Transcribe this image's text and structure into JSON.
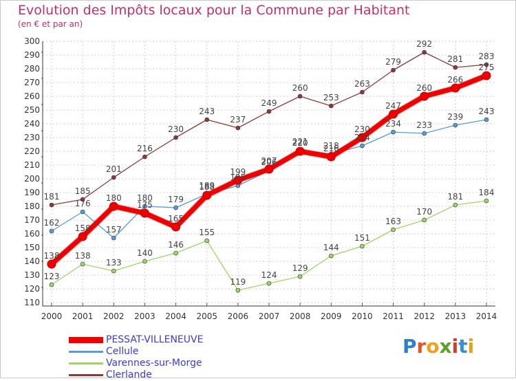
{
  "header": {
    "title": "Evolution des Impôts locaux pour la Commune par Habitant",
    "subtitle": "(en € et par an)"
  },
  "brand": {
    "name": "Proxiti",
    "letters": [
      "P",
      "r",
      "o",
      "x",
      "i",
      "t",
      "i"
    ],
    "letter_colors": [
      "#2f7fc9",
      "#e5532a",
      "#f0a021",
      "#5aa02c",
      "#d63a2a",
      "#3a8ed6",
      "#e7a11b"
    ]
  },
  "colors": {
    "title": "#c0306a",
    "legend_text": "#3b3bd8",
    "grid": "#cfcfcf",
    "axis": "#333333"
  },
  "chart_data": {
    "type": "line",
    "title": "Evolution des Impôts locaux pour la Commune par Habitant",
    "subtitle": "(en € et par an)",
    "x": [
      2000,
      2001,
      2002,
      2003,
      2004,
      2005,
      2006,
      2007,
      2008,
      2009,
      2010,
      2011,
      2012,
      2013,
      2014
    ],
    "ylim": [
      110,
      300
    ],
    "yticks": [
      110,
      120,
      130,
      140,
      150,
      160,
      170,
      180,
      190,
      200,
      210,
      220,
      230,
      240,
      250,
      260,
      270,
      280,
      290,
      300
    ],
    "grid": true,
    "legend_position": "bottom-left",
    "series": [
      {
        "name": "PESSAT-VILLENEUVE",
        "color": "#ee0000",
        "values": [
          138,
          158,
          180,
          175,
          165,
          188,
          199,
          207,
          220,
          216,
          230,
          247,
          260,
          266,
          275
        ],
        "labels": [
          "138",
          "158",
          "180",
          "175",
          "165",
          "188",
          "199",
          "207",
          "220",
          "216",
          "230",
          "247",
          "260",
          "266",
          "275"
        ]
      },
      {
        "name": "Cellule",
        "color": "#5b9bd5",
        "values": [
          162,
          176,
          157,
          180,
          179,
          189,
          195,
          206,
          221,
          218,
          224,
          234,
          233,
          239,
          243
        ],
        "labels": [
          "162",
          "176",
          "157",
          "180",
          "179",
          "189",
          "195",
          "206",
          "221",
          "218",
          "224",
          "234",
          "233",
          "239",
          "243"
        ]
      },
      {
        "name": "Varennes-sur-Morge",
        "color": "#9fd46a",
        "values": [
          123,
          138,
          133,
          140,
          146,
          155,
          119,
          124,
          129,
          144,
          151,
          163,
          170,
          181,
          184
        ],
        "labels": [
          "123",
          "138",
          "133",
          "140",
          "146",
          "155",
          "119",
          "124",
          "129",
          "144",
          "151",
          "163",
          "170",
          "181",
          "184"
        ]
      },
      {
        "name": "Clerlande",
        "color": "#8b3a3a",
        "values": [
          181,
          185,
          201,
          216,
          230,
          243,
          237,
          249,
          260,
          253,
          263,
          279,
          292,
          281,
          283
        ],
        "labels": [
          "181",
          "185",
          "201",
          "216",
          "230",
          "243",
          "237",
          "249",
          "260",
          "253",
          "263",
          "279",
          "292",
          "281",
          "283"
        ]
      }
    ]
  }
}
